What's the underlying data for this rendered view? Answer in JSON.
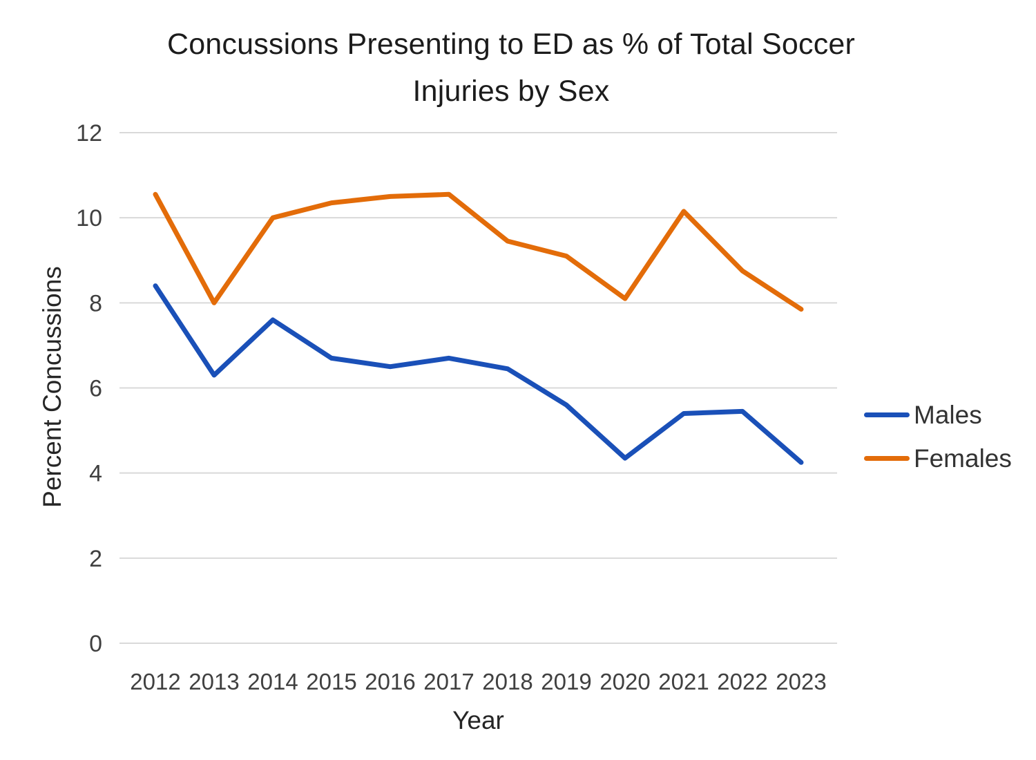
{
  "chart_data": {
    "type": "line",
    "title": "Concussions Presenting to ED as % of Total Soccer Injuries by Sex",
    "title_lines": [
      "Concussions Presenting to ED as % of Total Soccer",
      "Injuries by Sex"
    ],
    "xlabel": "Year",
    "ylabel": "Percent Concussions",
    "categories": [
      "2012",
      "2013",
      "2014",
      "2015",
      "2016",
      "2017",
      "2018",
      "2019",
      "2020",
      "2021",
      "2022",
      "2023"
    ],
    "y_ticks": [
      0,
      2,
      4,
      6,
      8,
      10,
      12
    ],
    "ylim": [
      0,
      12
    ],
    "grid": "horizontal-only",
    "legend_position": "right",
    "series": [
      {
        "name": "Males",
        "color": "#1A50B8",
        "values": [
          8.4,
          6.3,
          7.6,
          6.7,
          6.5,
          6.7,
          6.45,
          5.6,
          4.35,
          5.4,
          5.45,
          4.25
        ]
      },
      {
        "name": "Females",
        "color": "#E36C09",
        "values": [
          10.55,
          8.0,
          10.0,
          10.35,
          10.5,
          10.55,
          9.45,
          9.1,
          8.1,
          10.15,
          8.75,
          7.85
        ]
      }
    ],
    "layout": {
      "gridline_color": "#D9D9D9",
      "tick_label_color": "#404040",
      "title_color": "#1C1C1C",
      "line_width": 7
    }
  }
}
